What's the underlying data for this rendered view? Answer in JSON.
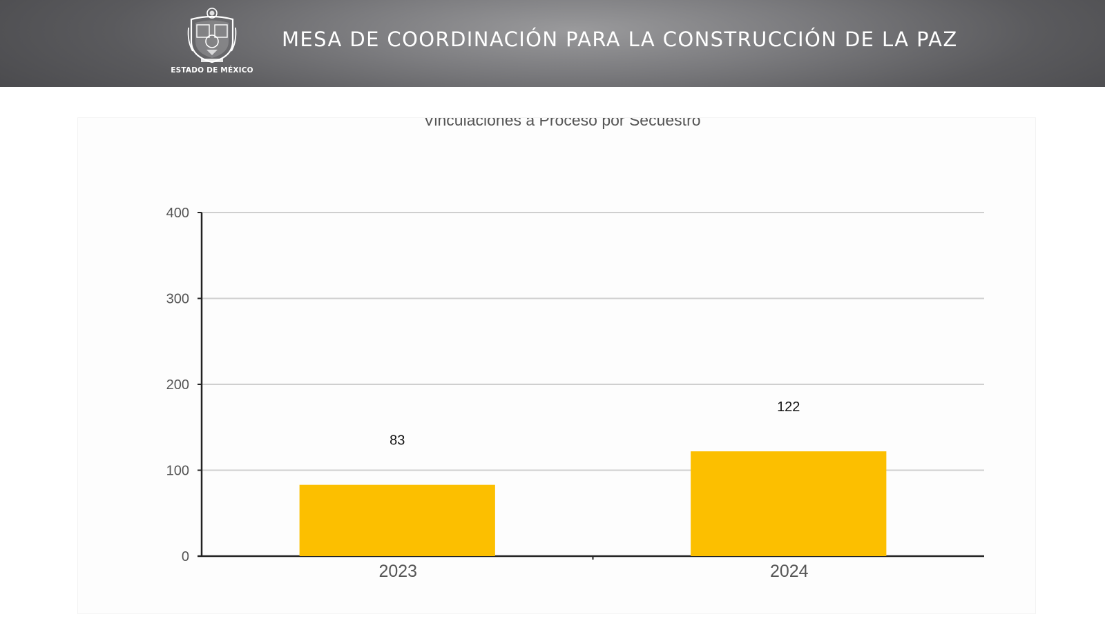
{
  "header": {
    "logo_label": "ESTADO DE MÉXICO",
    "title": "MESA DE COORDINACIÓN PARA LA CONSTRUCCIÓN DE LA PAZ"
  },
  "colors": {
    "bar": "#fcbf00",
    "axis": "#222222",
    "grid": "#cfcfcf",
    "tick_text": "#555555",
    "title_text": "#555555",
    "header_gray": "#6e6e71"
  },
  "chart_data": {
    "type": "bar",
    "title": "Vinculaciones a Proceso por Secuestro",
    "categories": [
      "2023",
      "2024"
    ],
    "values": [
      83,
      122
    ],
    "data_labels": [
      "83",
      "122"
    ],
    "ylim": [
      0,
      400
    ],
    "yticks": [
      0,
      100,
      200,
      300,
      400
    ],
    "xlabel": "",
    "ylabel": "",
    "grid": true,
    "legend": "none"
  }
}
